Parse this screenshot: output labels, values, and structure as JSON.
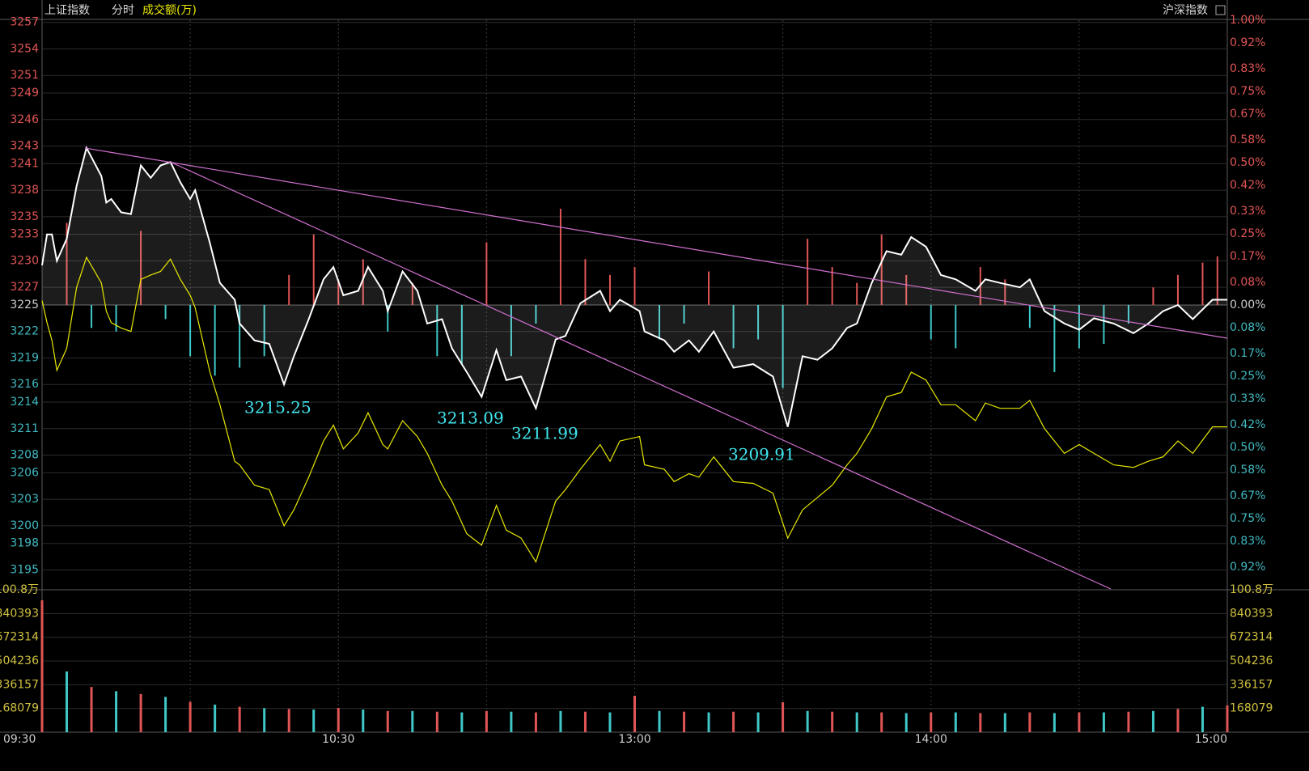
{
  "chart_data": {
    "type": "line",
    "title": "上证指数",
    "subtitle": "分时",
    "legend_label": "成交额(万)",
    "right_label": "沪深指数",
    "x": [
      0,
      1,
      2,
      3,
      5,
      7,
      9,
      12,
      13,
      14,
      16,
      18,
      20,
      22,
      24,
      26,
      28,
      30,
      31,
      34,
      36,
      39,
      40,
      43,
      46,
      49,
      51,
      54,
      57,
      59,
      61,
      64,
      66,
      69,
      70,
      73,
      76,
      78,
      81,
      83,
      86,
      89,
      92,
      94,
      97,
      100,
      104,
      106,
      109,
      113,
      115,
      117,
      121,
      122,
      126,
      128,
      131,
      133,
      136,
      140,
      144,
      148,
      151,
      154,
      157,
      160,
      163,
      165,
      168,
      171,
      174,
      176,
      179,
      182,
      185,
      189,
      191,
      194,
      198,
      200,
      203,
      207,
      210,
      213,
      217,
      221,
      224,
      227,
      230,
      233,
      237,
      240
    ],
    "xlim": [
      0,
      240
    ],
    "xticks": [
      {
        "value": 0,
        "label": "09:30"
      },
      {
        "value": 60,
        "label": "10:30"
      },
      {
        "value": 120,
        "label": "13:00"
      },
      {
        "value": 180,
        "label": "14:00"
      },
      {
        "value": 240,
        "label": "15:00"
      }
    ],
    "xgrid": [
      30,
      60,
      90,
      120,
      150,
      180,
      210
    ],
    "ylim": [
      3192.75,
      3257.25
    ],
    "base": 3225,
    "yticks": [
      3257,
      3254,
      3251,
      3249,
      3246,
      3243,
      3241,
      3238,
      3235,
      3233,
      3230,
      3227,
      3225,
      3222,
      3219,
      3216,
      3214,
      3211,
      3208,
      3206,
      3203,
      3200,
      3198,
      3195
    ],
    "y2lim": [
      -1,
      1
    ],
    "y2ticks": [
      {
        "value": 1.0,
        "label": "1.00%"
      },
      {
        "value": 0.92,
        "label": "0.92%"
      },
      {
        "value": 0.83,
        "label": "0.83%"
      },
      {
        "value": 0.75,
        "label": "0.75%"
      },
      {
        "value": 0.67,
        "label": "0.67%"
      },
      {
        "value": 0.58,
        "label": "0.58%"
      },
      {
        "value": 0.5,
        "label": "0.50%"
      },
      {
        "value": 0.42,
        "label": "0.42%"
      },
      {
        "value": 0.33,
        "label": "0.33%"
      },
      {
        "value": 0.25,
        "label": "0.25%"
      },
      {
        "value": 0.17,
        "label": "0.17%"
      },
      {
        "value": 0.08,
        "label": "0.08%"
      },
      {
        "value": 0,
        "label": "0.00%"
      },
      {
        "value": -0.08,
        "label": "0.08%"
      },
      {
        "value": -0.17,
        "label": "0.17%"
      },
      {
        "value": -0.25,
        "label": "0.25%"
      },
      {
        "value": -0.33,
        "label": "0.33%"
      },
      {
        "value": -0.42,
        "label": "0.42%"
      },
      {
        "value": -0.5,
        "label": "0.50%"
      },
      {
        "value": -0.58,
        "label": "0.58%"
      },
      {
        "value": -0.67,
        "label": "0.67%"
      },
      {
        "value": -0.75,
        "label": "0.75%"
      },
      {
        "value": -0.83,
        "label": "0.83%"
      },
      {
        "value": -0.92,
        "label": "0.92%"
      }
    ],
    "up_color": "#e05555",
    "down_color": "#40c8c8",
    "series": [
      {
        "color": "#ffffff",
        "values": [
          3229.5,
          3233,
          3233,
          3230,
          3232.5,
          3238.5,
          3242.8,
          3239.6,
          3236.6,
          3237,
          3235.5,
          3235.3,
          3240.8,
          3239.4,
          3240.8,
          3241.2,
          3238.9,
          3237,
          3238,
          3232,
          3227.5,
          3225.6,
          3222.9,
          3221,
          3220.6,
          3216,
          3219.2,
          3223.4,
          3227.9,
          3229.3,
          3226.1,
          3226.6,
          3229.3,
          3226.6,
          3224.3,
          3228.8,
          3226.6,
          3222.9,
          3223.4,
          3220.1,
          3217.4,
          3214.6,
          3219.9,
          3216.5,
          3216.9,
          3213.3,
          3221.1,
          3221.5,
          3225.2,
          3226.6,
          3224.3,
          3225.6,
          3224.3,
          3222,
          3221,
          3219.7,
          3221,
          3219.7,
          3222,
          3217.9,
          3218.3,
          3216.9,
          3211.2,
          3219.2,
          3218.8,
          3220.1,
          3222.4,
          3222.9,
          3227.5,
          3231.1,
          3230.7,
          3232.7,
          3231.6,
          3228.4,
          3227.9,
          3226.6,
          3227.9,
          3227.5,
          3227,
          3227.9,
          3224.3,
          3222.9,
          3222.2,
          3223.5,
          3222.9,
          3221.8,
          3222.9,
          3224.3,
          3225,
          3223.4,
          3225.6,
          3225.6
        ]
      },
      {
        "color": "#e8e800",
        "values": [
          3225.5,
          3223,
          3221,
          3217.6,
          3220.1,
          3227,
          3230.4,
          3227.5,
          3224.3,
          3223,
          3222.4,
          3222,
          3227.9,
          3228.4,
          3228.8,
          3230.2,
          3227.9,
          3226.1,
          3224.7,
          3217.4,
          3213.7,
          3207.3,
          3206.9,
          3204.6,
          3204.1,
          3200,
          3201.8,
          3205.5,
          3209.6,
          3211.4,
          3208.7,
          3210.5,
          3212.8,
          3209.2,
          3208.7,
          3211.9,
          3210.1,
          3208.2,
          3204.6,
          3202.8,
          3199.1,
          3197.8,
          3202.3,
          3199.5,
          3198.6,
          3195.9,
          3202.8,
          3204.1,
          3206.4,
          3209.2,
          3207.3,
          3209.6,
          3210.1,
          3206.9,
          3206.4,
          3205,
          3205.9,
          3205.5,
          3207.8,
          3205,
          3204.8,
          3203.7,
          3198.6,
          3201.8,
          3203.2,
          3204.6,
          3206.9,
          3208.2,
          3211,
          3214.6,
          3215.1,
          3217.4,
          3216.5,
          3213.7,
          3213.7,
          3211.9,
          3213.9,
          3213.3,
          3213.3,
          3214.2,
          3211,
          3208.2,
          3209.2,
          3208.2,
          3206.9,
          3206.6,
          3207.3,
          3207.8,
          3209.6,
          3208.2,
          3211.2,
          3211.2
        ]
      }
    ],
    "strength": {
      "x": [
        5,
        10,
        15,
        20,
        25,
        30,
        35,
        40,
        45,
        50,
        55,
        60,
        65,
        70,
        75,
        80,
        85,
        90,
        95,
        100,
        105,
        110,
        115,
        120,
        125,
        130,
        135,
        140,
        145,
        150,
        155,
        160,
        165,
        170,
        175,
        180,
        185,
        190,
        195,
        200,
        205,
        210,
        215,
        220,
        225,
        230,
        235,
        238
      ],
      "values": [
        9.3,
        -2.6,
        -3,
        8.4,
        -1.6,
        -5.8,
        -8,
        -7.1,
        -5.8,
        3.4,
        8,
        2.9,
        5.2,
        -3,
        2.5,
        -5.8,
        -6.7,
        7.1,
        -5.8,
        -2.1,
        10.9,
        5.2,
        3.4,
        4.3,
        -3.9,
        -2.1,
        3.8,
        -4.9,
        -3.9,
        -9.4,
        7.5,
        4.3,
        2.5,
        8,
        3.4,
        -3.9,
        -4.9,
        4.3,
        2.9,
        -2.6,
        -7.6,
        -4.9,
        -4.4,
        -2.1,
        2,
        3.4,
        4.8,
        5.5
      ]
    },
    "annotations": [
      3215.25,
      3213.09,
      3211.99,
      3209.91
    ],
    "volume": {
      "ylim": [
        0,
        1008472
      ],
      "yticks": [
        {
          "value": 1008472,
          "label": "100.8万"
        },
        840393,
        672314,
        504236,
        336157,
        168079
      ],
      "x": [
        0,
        5,
        10,
        15,
        20,
        25,
        30,
        35,
        40,
        45,
        50,
        55,
        60,
        65,
        70,
        75,
        80,
        85,
        90,
        95,
        100,
        105,
        110,
        115,
        120,
        125,
        130,
        135,
        140,
        145,
        150,
        155,
        160,
        165,
        170,
        175,
        180,
        185,
        190,
        195,
        200,
        205,
        210,
        215,
        220,
        225,
        230,
        235,
        240
      ],
      "values": [
        934000,
        430000,
        320000,
        290000,
        270000,
        250000,
        215000,
        195000,
        180000,
        170000,
        165000,
        160000,
        172000,
        160000,
        150000,
        150000,
        145000,
        140000,
        150000,
        145000,
        140000,
        150000,
        145000,
        140000,
        258000,
        150000,
        145000,
        140000,
        145000,
        140000,
        212000,
        150000,
        145000,
        140000,
        140000,
        135000,
        140000,
        140000,
        135000,
        135000,
        140000,
        135000,
        140000,
        140000,
        145000,
        150000,
        165000,
        180000,
        189000
      ]
    }
  }
}
